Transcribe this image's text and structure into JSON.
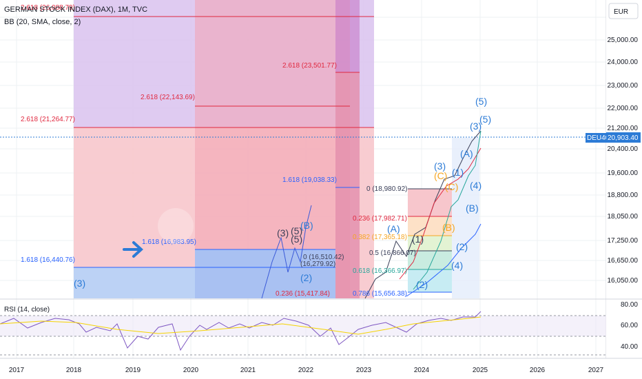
{
  "header": {
    "title": "GERMAN STOCK INDEX (DAX), 1M, TVC",
    "indicator": "BB (20, SMA, close, 2)",
    "currency": "EUR",
    "rsi_label": "RSI (14, close)"
  },
  "price_tag": {
    "symbol": "DEU40",
    "value": "20,903.40"
  },
  "colors": {
    "purple_zone": "#d9c2ee",
    "pink_zone": "#f7c6cc",
    "blue_zone": "#bcd2f5",
    "red_line": "#e0283f",
    "blue_line": "#2962ff",
    "wave_blue": "#2c7bd6",
    "wave_dark": "#3a3f58",
    "wave_orange": "#f5a623",
    "rsi_line": "#7e57c2",
    "rsi_ma": "#f5d300"
  },
  "chart_data": {
    "type": "line",
    "x_ticks": [
      "2017",
      "2018",
      "2019",
      "2020",
      "2021",
      "2022",
      "2023",
      "2024",
      "2025",
      "2026",
      "2027"
    ],
    "y_ticks": [
      "25,000.00",
      "24,000.00",
      "23,000.00",
      "22,000.00",
      "21,200.00",
      "20,400.00",
      "19,600.00",
      "18,800.00",
      "18,050.00",
      "17,250.00",
      "16,650.00",
      "16,050.00"
    ],
    "rsi_ticks": [
      "80.00",
      "60.00",
      "40.00"
    ],
    "fib_levels": [
      {
        "label": "2.618 (21,264.77)",
        "value": 21264.77
      },
      {
        "label": "2.618 (22,143.69)",
        "value": 22143.69
      },
      {
        "label": "2.618 (23,501.77)",
        "value": 23501.77
      },
      {
        "label": "1.618 (19,038.33)",
        "value": 19038.33
      },
      {
        "label": "1.618 (16,983.95)",
        "value": 16983.95
      },
      {
        "label": "1.618 (16,440.76)",
        "value": 16440.76
      },
      {
        "label": "0 (18,980.92)",
        "value": 18980.92
      },
      {
        "label": "0.236 (17,982.71)",
        "value": 17982.71
      },
      {
        "label": "0.382 (17,365.18)",
        "value": 17365.18
      },
      {
        "label": "0.5 (16,866.07)",
        "value": 16866.07
      },
      {
        "label": "0.618 (16,366.97)",
        "value": 16366.97
      },
      {
        "label": "0.786 (15,656.38)",
        "value": 15656.38
      },
      {
        "label": "0 (16,510.42)",
        "value": 16510.42
      },
      {
        "label": "(16,279.92)",
        "value": 16279.92
      },
      {
        "label": "0.236 (15,417.84)",
        "value": 15417.84
      },
      {
        "label": "2.618 (26,088.79)",
        "value": 26088.79
      }
    ],
    "wave_labels": [
      "(3)",
      "(3)",
      "(5)",
      "(5)",
      "(B)",
      "(2)",
      "(A)",
      "(1)",
      "(2)",
      "(3)",
      "(C)",
      "(1)",
      "(4)",
      "(B)",
      "(A)",
      "(2)",
      "(4)",
      "(3)",
      "(5)",
      "(5)",
      "(C)",
      "(B)"
    ],
    "last_price": 20903.4,
    "rsi_last": 75
  }
}
